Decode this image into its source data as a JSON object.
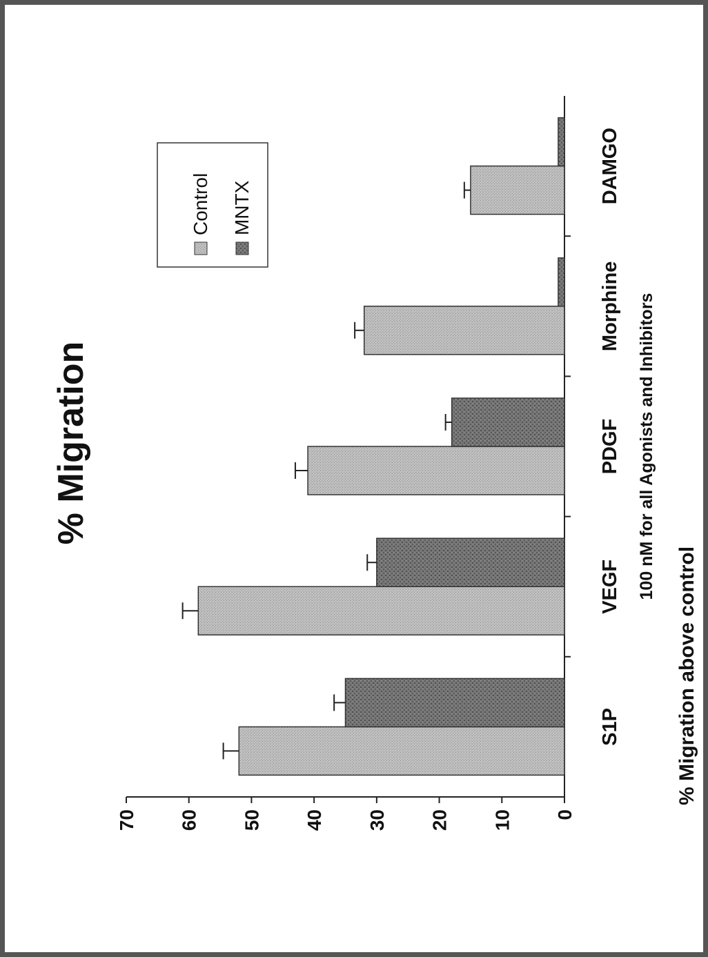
{
  "chart_data": {
    "type": "bar",
    "title": "% Migration",
    "xlabel": "100 nM for all Agonists and Inhibitors",
    "ylabel": "% Migration above control",
    "categories": [
      "S1P",
      "VEGF",
      "PDGF",
      "Morphine",
      "DAMGO"
    ],
    "series": [
      {
        "name": "Control",
        "values": [
          52,
          58.5,
          41,
          32,
          15
        ],
        "errors": [
          2.5,
          2.5,
          2,
          1.5,
          1
        ],
        "color": "#b5b5b5"
      },
      {
        "name": "MNTX",
        "values": [
          35,
          30,
          18,
          1,
          1
        ],
        "errors": [
          1.8,
          1.5,
          1,
          0,
          0
        ],
        "color": "#6e6e6e"
      }
    ],
    "ylim": [
      0,
      70
    ],
    "yticks": [
      0,
      10,
      20,
      30,
      40,
      50,
      60,
      70
    ],
    "legend_position": "top-right",
    "grid": false,
    "orientation": "figure rotated 90 degrees counter-clockwise"
  }
}
